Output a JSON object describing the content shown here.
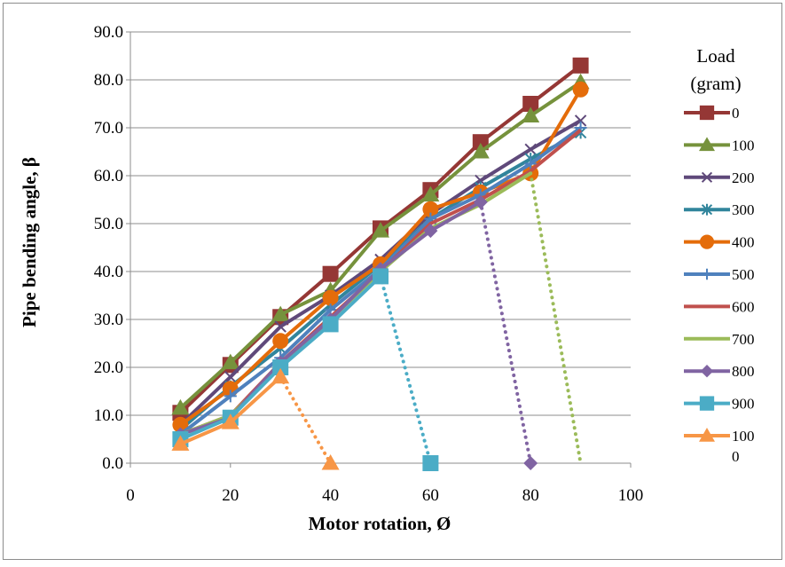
{
  "chart_data": {
    "type": "line",
    "title": "",
    "xlabel": "Motor rotation, Ø",
    "ylabel": "Pipe bending angle, β",
    "xlim": [
      0,
      100
    ],
    "ylim": [
      0,
      90
    ],
    "x_ticks": [
      "0",
      "20",
      "40",
      "60",
      "80",
      "100"
    ],
    "y_ticks": [
      "0.0",
      "10.0",
      "20.0",
      "30.0",
      "40.0",
      "50.0",
      "60.0",
      "70.0",
      "80.0",
      "90.0"
    ],
    "grid": "horizontal",
    "legend_position": "right",
    "legend_title_lines": [
      "Load",
      "(gram)"
    ],
    "series": [
      {
        "name": "0",
        "color": "#953735",
        "marker": "square",
        "x": [
          10,
          20,
          30,
          40,
          50,
          60,
          70,
          80,
          90
        ],
        "y": [
          10.5,
          20.5,
          30.5,
          39.5,
          49.0,
          57.0,
          67.0,
          75.0,
          83.0
        ]
      },
      {
        "name": "100",
        "color": "#76923C",
        "marker": "triangle",
        "x": [
          10,
          20,
          30,
          40,
          50,
          60,
          70,
          80,
          90
        ],
        "y": [
          11.5,
          21.0,
          31.0,
          36.0,
          48.5,
          56.0,
          65.0,
          72.5,
          79.5
        ]
      },
      {
        "name": "200",
        "color": "#5F497A",
        "marker": "x",
        "x": [
          10,
          20,
          30,
          40,
          50,
          60,
          70,
          80,
          90
        ],
        "y": [
          8.0,
          18.0,
          28.5,
          35.0,
          42.5,
          52.0,
          59.0,
          65.5,
          71.5
        ]
      },
      {
        "name": "300",
        "color": "#31859C",
        "marker": "star",
        "x": [
          10,
          20,
          30,
          40,
          50,
          60,
          70,
          80,
          90
        ],
        "y": [
          7.0,
          16.0,
          24.0,
          33.0,
          41.5,
          51.0,
          57.5,
          63.5,
          69.0
        ]
      },
      {
        "name": "400",
        "color": "#E46C0A",
        "marker": "circle",
        "x": [
          10,
          20,
          30,
          40,
          50,
          60,
          70,
          80,
          90
        ],
        "y": [
          8.0,
          15.5,
          25.5,
          34.5,
          41.5,
          53.0,
          56.5,
          60.5,
          78.0
        ]
      },
      {
        "name": "500",
        "color": "#4F81BD",
        "marker": "plus",
        "x": [
          10,
          20,
          30,
          40,
          50,
          60,
          70,
          80,
          90
        ],
        "y": [
          6.0,
          14.0,
          22.0,
          32.0,
          40.5,
          51.0,
          56.0,
          62.5,
          70.0
        ]
      },
      {
        "name": "600",
        "color": "#C0504D",
        "marker": "none",
        "x": [
          10,
          20,
          30,
          40,
          50,
          60,
          70,
          80,
          90
        ],
        "y": [
          6.0,
          10.0,
          21.0,
          30.5,
          40.0,
          50.0,
          55.0,
          61.0,
          69.5
        ]
      },
      {
        "name": "700",
        "color": "#9BBB59",
        "marker": "none",
        "x": [
          10,
          20,
          30,
          40,
          50,
          60,
          70,
          80
        ],
        "y": [
          6.0,
          10.0,
          20.0,
          30.0,
          40.0,
          49.0,
          54.0,
          60.5
        ],
        "dotted_x": [
          80,
          90
        ],
        "dotted_y": [
          60.5,
          0.0
        ]
      },
      {
        "name": "800",
        "color": "#8064A2",
        "marker": "diamond",
        "x": [
          10,
          20,
          30,
          40,
          50,
          60,
          70
        ],
        "y": [
          6.0,
          9.5,
          21.0,
          30.0,
          40.5,
          48.5,
          54.5
        ],
        "dotted_x": [
          70,
          80
        ],
        "dotted_y": [
          54.5,
          0.0
        ]
      },
      {
        "name": "900",
        "color": "#4BACC6",
        "marker": "square",
        "x": [
          10,
          20,
          30,
          40,
          50
        ],
        "y": [
          5.0,
          9.5,
          20.0,
          29.0,
          39.0
        ],
        "dotted_x": [
          50,
          60
        ],
        "dotted_y": [
          39.0,
          0.0
        ]
      },
      {
        "name": "1000",
        "color": "#F79646",
        "marker": "triangle",
        "x": [
          10,
          20,
          30
        ],
        "y": [
          4.0,
          8.5,
          18.0
        ],
        "dotted_x": [
          30,
          40
        ],
        "dotted_y": [
          18.0,
          0.0
        ]
      }
    ]
  }
}
